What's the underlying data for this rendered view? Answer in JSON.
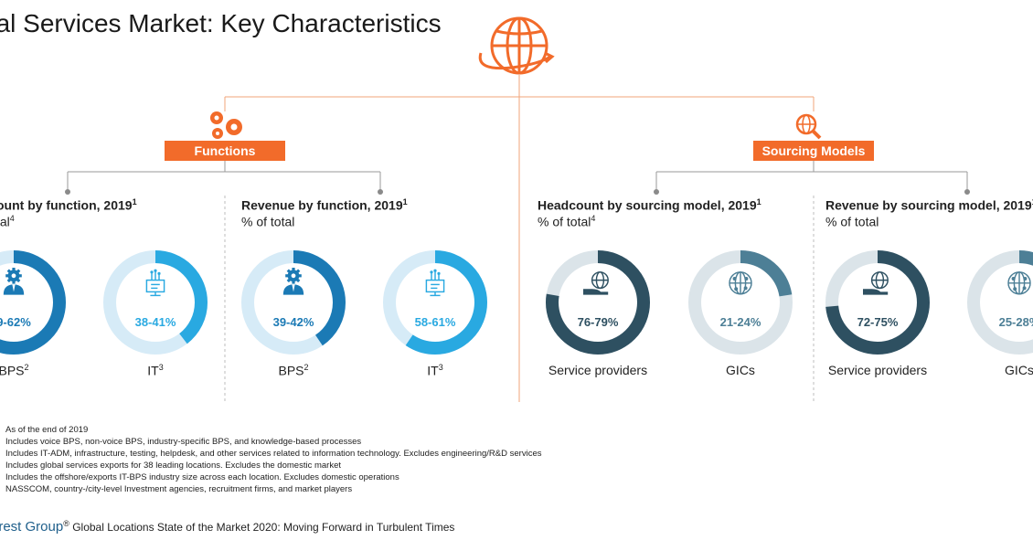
{
  "page": {
    "title": "bal Services Market: Key Characteristics",
    "tags": {
      "functions": "Functions",
      "sourcing": "Sourcing Models"
    }
  },
  "panels": [
    {
      "title": "ount by function, 2019",
      "title_sup": "1",
      "subtitle": "tal",
      "subtitle_sup": "4"
    },
    {
      "title": "Revenue by function, 2019",
      "title_sup": "1",
      "subtitle": "% of total",
      "subtitle_sup": ""
    },
    {
      "title": "Headcount by sourcing model, 2019",
      "title_sup": "1",
      "subtitle": "% of total",
      "subtitle_sup": "4"
    },
    {
      "title": "Revenue by sourcing model, 2019",
      "title_sup": "1",
      "subtitle": "% of total",
      "subtitle_sup": ""
    }
  ],
  "chart_data": [
    {
      "type": "pie",
      "label": "BPS",
      "label_sup": "2",
      "value_text": "9-62%",
      "value": 60.5,
      "icon": "person-gear-icon",
      "color": "#1b7ab5",
      "track": "#d6ebf7"
    },
    {
      "type": "pie",
      "label": "IT",
      "label_sup": "3",
      "value_text": "38-41%",
      "value": 39.5,
      "icon": "monitor-circuit-icon",
      "color": "#29a9e1",
      "track": "#d6ebf7"
    },
    {
      "type": "pie",
      "label": "BPS",
      "label_sup": "2",
      "value_text": "39-42%",
      "value": 40.5,
      "icon": "person-gear-icon",
      "color": "#1b7ab5",
      "track": "#d6ebf7"
    },
    {
      "type": "pie",
      "label": "IT",
      "label_sup": "3",
      "value_text": "58-61%",
      "value": 59.5,
      "icon": "monitor-circuit-icon",
      "color": "#29a9e1",
      "track": "#d6ebf7"
    },
    {
      "type": "pie",
      "label": "Service providers",
      "label_sup": "",
      "value_text": "76-79%",
      "value": 77.5,
      "icon": "hand-globe-icon",
      "color": "#2e5061",
      "track": "#dbe4e9"
    },
    {
      "type": "pie",
      "label": "GICs",
      "label_sup": "",
      "value_text": "21-24%",
      "value": 22.5,
      "icon": "globe-network-icon",
      "color": "#4d7f96",
      "track": "#dbe4e9"
    },
    {
      "type": "pie",
      "label": "Service providers",
      "label_sup": "",
      "value_text": "72-75%",
      "value": 73.5,
      "icon": "hand-globe-icon",
      "color": "#2e5061",
      "track": "#dbe4e9"
    },
    {
      "type": "pie",
      "label": "GICs",
      "label_sup": "",
      "value_text": "25-28%",
      "value": 26.5,
      "icon": "globe-network-icon",
      "color": "#4d7f96",
      "track": "#dbe4e9"
    }
  ],
  "footnotes": [
    "As of the end of 2019",
    "Includes voice BPS, non-voice BPS, industry-specific BPS, and knowledge-based processes",
    "Includes IT-ADM, infrastructure, testing, helpdesk, and other services related to information technology. Excludes engineering/R&D services",
    "Includes global services exports for 38 leading locations. Excludes the domestic market",
    "Includes the offshore/exports IT-BPS industry size across each location. Excludes domestic operations",
    "NASSCOM, country-/city-level Investment agencies, recruitment firms, and market players"
  ],
  "source": {
    "brand": "erest Group",
    "brand_mark": "®",
    "text": " Global Locations State of the Market 2020: Moving Forward in Turbulent Times"
  },
  "colors": {
    "accent": "#f26b2a",
    "divider": "#f2a47a",
    "connector": "#9a9a9a"
  }
}
